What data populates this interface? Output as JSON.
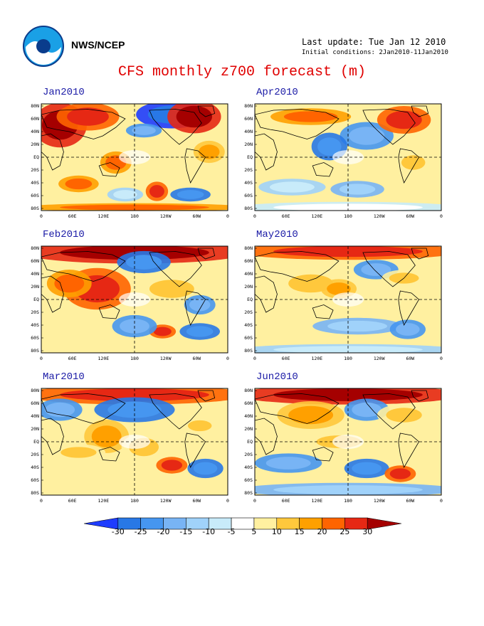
{
  "header": {
    "agency": "NWS/NCEP",
    "last_update": "Last update: Tue Jan 12 2010",
    "initial_conditions": "Initial conditions: 2Jan2010-11Jan2010",
    "title": "CFS monthly z700 forecast (m)"
  },
  "panels": [
    {
      "id": "jan",
      "label": "Jan2010"
    },
    {
      "id": "apr",
      "label": "Apr2010"
    },
    {
      "id": "feb",
      "label": "Feb2010"
    },
    {
      "id": "may",
      "label": "May2010"
    },
    {
      "id": "mar",
      "label": "Mar2010"
    },
    {
      "id": "jun",
      "label": "Jun2010"
    }
  ],
  "axes": {
    "lat_labels": [
      "80N",
      "60N",
      "40N",
      "20N",
      "EQ",
      "20S",
      "40S",
      "60S",
      "80S"
    ],
    "lon_labels": [
      "0",
      "60E",
      "120E",
      "180",
      "120W",
      "60W",
      "0"
    ]
  },
  "legend": {
    "labels": [
      "-30",
      "-25",
      "-20",
      "-15",
      "-10",
      "-5",
      "5",
      "10",
      "15",
      "20",
      "25",
      "30"
    ],
    "colors": [
      "#1e3cff",
      "#2878e6",
      "#4696f0",
      "#78b4f5",
      "#a0d2fa",
      "#c8ebfa",
      "#ffffff",
      "#fff0a0",
      "#ffc83c",
      "#ffa000",
      "#ff6400",
      "#e62814",
      "#a50000"
    ]
  }
}
